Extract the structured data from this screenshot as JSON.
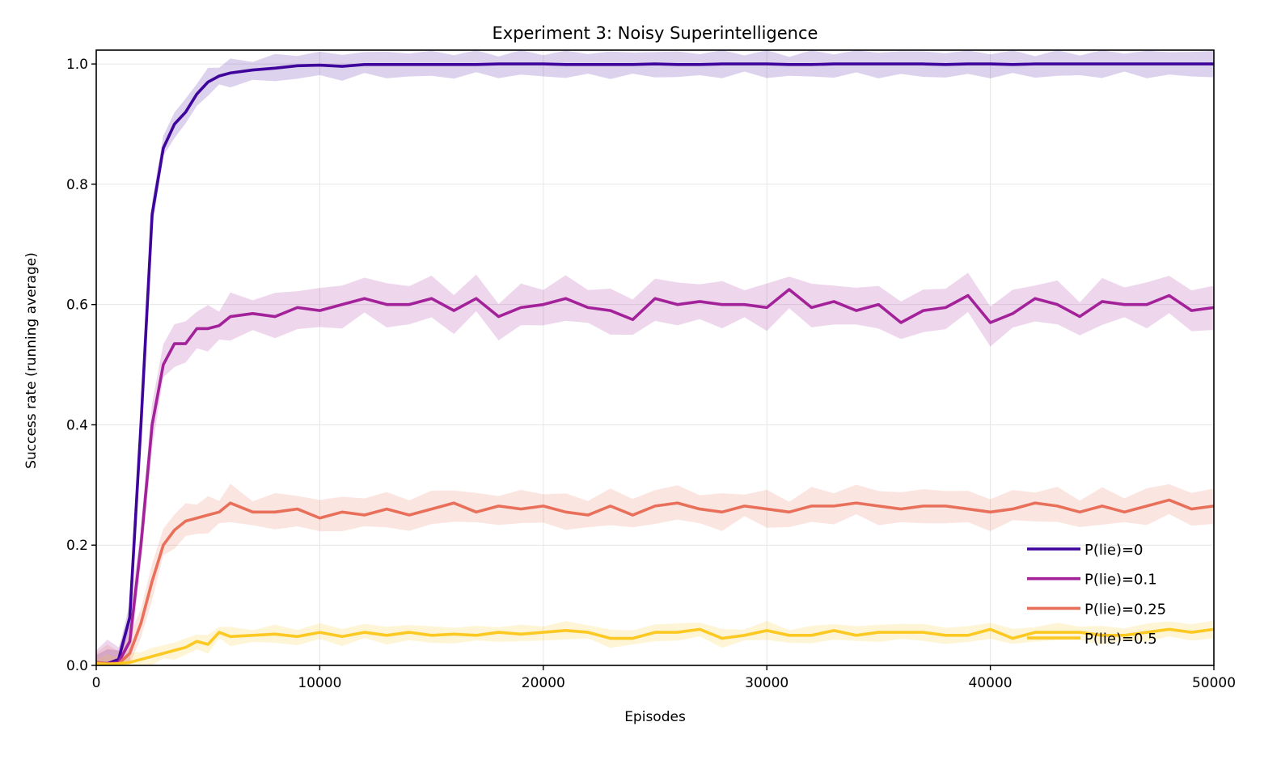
{
  "chart_data": {
    "type": "line",
    "title": "Experiment 3: Noisy Superintelligence",
    "xlabel": "Episodes",
    "ylabel": "Success rate (running average)",
    "xlim": [
      0,
      50000
    ],
    "ylim": [
      0,
      1.023
    ],
    "xticks": [
      0,
      10000,
      20000,
      30000,
      40000,
      50000
    ],
    "xtick_labels": [
      "0",
      "10000",
      "20000",
      "30000",
      "40000",
      "50000"
    ],
    "yticks": [
      0,
      0.2,
      0.4,
      0.6,
      0.8,
      1.0
    ],
    "ytick_labels": [
      "0.0",
      "0.2",
      "0.4",
      "0.6",
      "0.8",
      "1.0"
    ],
    "grid": true,
    "legend_position": "lower-right",
    "x": [
      0,
      500,
      1000,
      1500,
      2000,
      2500,
      3000,
      3500,
      4000,
      4500,
      5000,
      5500,
      6000,
      7000,
      8000,
      9000,
      10000,
      11000,
      12000,
      13000,
      14000,
      15000,
      16000,
      17000,
      18000,
      19000,
      20000,
      21000,
      22000,
      23000,
      24000,
      25000,
      26000,
      27000,
      28000,
      29000,
      30000,
      31000,
      32000,
      33000,
      34000,
      35000,
      36000,
      37000,
      38000,
      39000,
      40000,
      41000,
      42000,
      43000,
      44000,
      45000,
      46000,
      47000,
      48000,
      49000,
      50000
    ],
    "series": [
      {
        "name": "P(lie)=0",
        "color": "#3e049c",
        "band_halfwidth": 0.012,
        "values": [
          0.005,
          0.003,
          0.01,
          0.08,
          0.4,
          0.75,
          0.86,
          0.9,
          0.92,
          0.95,
          0.97,
          0.98,
          0.985,
          0.99,
          0.993,
          0.997,
          0.998,
          0.996,
          0.999,
          0.999,
          0.999,
          0.999,
          0.999,
          0.999,
          1.0,
          1.0,
          1.0,
          0.999,
          0.999,
          0.999,
          0.999,
          1.0,
          0.999,
          0.999,
          1.0,
          1.0,
          1.0,
          0.999,
          0.999,
          1.0,
          1.0,
          1.0,
          1.0,
          1.0,
          0.999,
          1.0,
          1.0,
          0.999,
          1.0,
          1.0,
          1.0,
          1.0,
          1.0,
          1.0,
          1.0,
          1.0,
          1.0
        ]
      },
      {
        "name": "P(lie)=0.1",
        "color": "#a3229a",
        "band_halfwidth": 0.02,
        "values": [
          0.005,
          0.003,
          0.005,
          0.04,
          0.2,
          0.4,
          0.5,
          0.535,
          0.535,
          0.56,
          0.56,
          0.565,
          0.58,
          0.585,
          0.58,
          0.595,
          0.59,
          0.6,
          0.61,
          0.6,
          0.6,
          0.61,
          0.59,
          0.61,
          0.58,
          0.595,
          0.6,
          0.61,
          0.595,
          0.59,
          0.575,
          0.61,
          0.6,
          0.605,
          0.6,
          0.6,
          0.595,
          0.625,
          0.595,
          0.605,
          0.59,
          0.6,
          0.57,
          0.59,
          0.595,
          0.615,
          0.57,
          0.585,
          0.61,
          0.6,
          0.58,
          0.605,
          0.6,
          0.6,
          0.615,
          0.59,
          0.595
        ]
      },
      {
        "name": "P(lie)=0.25",
        "color": "#e8705a",
        "band_halfwidth": 0.016,
        "values": [
          0.005,
          0.003,
          0.003,
          0.02,
          0.07,
          0.14,
          0.2,
          0.225,
          0.24,
          0.245,
          0.25,
          0.255,
          0.27,
          0.255,
          0.255,
          0.26,
          0.245,
          0.255,
          0.25,
          0.26,
          0.25,
          0.26,
          0.27,
          0.255,
          0.265,
          0.26,
          0.265,
          0.255,
          0.25,
          0.265,
          0.25,
          0.265,
          0.27,
          0.26,
          0.255,
          0.265,
          0.26,
          0.255,
          0.265,
          0.265,
          0.27,
          0.265,
          0.26,
          0.265,
          0.265,
          0.26,
          0.255,
          0.26,
          0.27,
          0.265,
          0.255,
          0.265,
          0.255,
          0.265,
          0.275,
          0.26,
          0.265
        ]
      },
      {
        "name": "P(lie)=0.5",
        "color": "#fcc923",
        "band_halfwidth": 0.008,
        "values": [
          0.003,
          0.002,
          0.003,
          0.005,
          0.01,
          0.015,
          0.02,
          0.025,
          0.03,
          0.04,
          0.035,
          0.055,
          0.048,
          0.05,
          0.052,
          0.048,
          0.055,
          0.048,
          0.055,
          0.05,
          0.055,
          0.05,
          0.052,
          0.05,
          0.055,
          0.052,
          0.055,
          0.058,
          0.055,
          0.045,
          0.045,
          0.055,
          0.055,
          0.06,
          0.045,
          0.05,
          0.058,
          0.05,
          0.05,
          0.058,
          0.05,
          0.055,
          0.055,
          0.055,
          0.05,
          0.05,
          0.06,
          0.045,
          0.055,
          0.055,
          0.055,
          0.05,
          0.05,
          0.055,
          0.06,
          0.055,
          0.06
        ]
      }
    ]
  }
}
